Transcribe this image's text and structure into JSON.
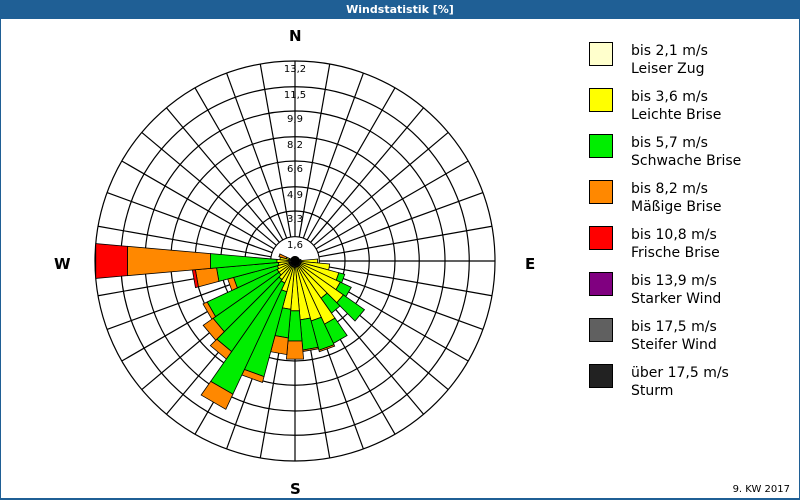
{
  "header": {
    "title": "Windstatistik [%]"
  },
  "footer": {
    "period": "9. KW 2017"
  },
  "directions": {
    "n": "N",
    "e": "E",
    "s": "S",
    "w": "W"
  },
  "legend": [
    {
      "range": "bis 2,1 m/s",
      "name": "Leiser Zug",
      "color": "#ffffcc"
    },
    {
      "range": "bis 3,6 m/s",
      "name": "Leichte Brise",
      "color": "#ffff00"
    },
    {
      "range": "bis 5,7 m/s",
      "name": "Schwache Brise",
      "color": "#00ee00"
    },
    {
      "range": "bis 8,2 m/s",
      "name": "Mäßige Brise",
      "color": "#ff8800"
    },
    {
      "range": "bis 10,8 m/s",
      "name": "Frische Brise",
      "color": "#ff0000"
    },
    {
      "range": "bis 13,9 m/s",
      "name": "Starker Wind",
      "color": "#800080"
    },
    {
      "range": "bis 17,5 m/s",
      "name": "Steifer Wind",
      "color": "#606060"
    },
    {
      "range": "über 17,5 m/s",
      "name": "Sturm",
      "color": "#222222"
    }
  ],
  "chart_data": {
    "type": "polar-bar",
    "title": "Windstatistik [%]",
    "unit": "%",
    "radial_ticks": [
      1.6,
      3.3,
      4.9,
      6.6,
      8.2,
      9.9,
      11.5,
      13.2
    ],
    "rmax": 13.2,
    "sector_width_deg": 10,
    "series_names": [
      "bis 2,1 m/s",
      "bis 3,6 m/s",
      "bis 5,7 m/s",
      "bis 8,2 m/s",
      "bis 10,8 m/s",
      "bis 13,9 m/s",
      "bis 17,5 m/s",
      "über 17,5 m/s"
    ],
    "sectors": [
      {
        "dir": 0,
        "cum": [
          0.3
        ]
      },
      {
        "dir": 10,
        "cum": [
          0.3
        ]
      },
      {
        "dir": 20,
        "cum": [
          0.3
        ]
      },
      {
        "dir": 30,
        "cum": [
          0.3
        ]
      },
      {
        "dir": 40,
        "cum": [
          0.3
        ]
      },
      {
        "dir": 50,
        "cum": [
          0.3
        ]
      },
      {
        "dir": 60,
        "cum": [
          0.3
        ]
      },
      {
        "dir": 70,
        "cum": [
          0.3
        ]
      },
      {
        "dir": 80,
        "cum": [
          0.4
        ]
      },
      {
        "dir": 90,
        "cum": [
          0.4,
          1.5
        ]
      },
      {
        "dir": 100,
        "cum": [
          0.4,
          2.3
        ]
      },
      {
        "dir": 110,
        "cum": [
          0.4,
          3.0,
          3.4
        ]
      },
      {
        "dir": 120,
        "cum": [
          0.4,
          3.3,
          4.1
        ]
      },
      {
        "dir": 130,
        "cum": [
          0.4,
          3.9,
          5.6
        ]
      },
      {
        "dir": 140,
        "cum": [
          0.4,
          3.0,
          4.2
        ]
      },
      {
        "dir": 150,
        "cum": [
          0.4,
          4.6,
          6.0
        ]
      },
      {
        "dir": 160,
        "cum": [
          0.4,
          4.1,
          6.1,
          6.2
        ]
      },
      {
        "dir": 170,
        "cum": [
          0.4,
          3.9,
          5.9,
          6.0
        ]
      },
      {
        "dir": 180,
        "cum": [
          0.4,
          3.3,
          5.3,
          6.5
        ]
      },
      {
        "dir": 190,
        "cum": [
          0.4,
          3.2,
          5.1,
          6.2
        ]
      },
      {
        "dir": 200,
        "cum": [
          0.4,
          2.1,
          7.9,
          8.3
        ]
      },
      {
        "dir": 210,
        "cum": [
          0.4,
          1.6,
          9.7,
          10.8
        ]
      },
      {
        "dir": 220,
        "cum": [
          0.4,
          1.5,
          7.3,
          7.9
        ]
      },
      {
        "dir": 230,
        "cum": [
          0.4,
          1.3,
          6.6,
          7.4
        ]
      },
      {
        "dir": 240,
        "cum": [
          0.4,
          1.3,
          6.4,
          6.7
        ]
      },
      {
        "dir": 250,
        "cum": [
          0.4,
          1.2,
          4.2,
          4.6
        ]
      },
      {
        "dir": 260,
        "cum": [
          0.4,
          1.1,
          5.2,
          6.6,
          6.8
        ]
      },
      {
        "dir": 270,
        "cum": [
          0.4,
          1.2,
          5.6,
          11.1,
          13.2
        ]
      },
      {
        "dir": 280,
        "cum": [
          0.4,
          1.0
        ]
      },
      {
        "dir": 290,
        "cum": [
          0.4,
          0.6,
          0.6,
          1.1
        ]
      },
      {
        "dir": 300,
        "cum": [
          0.3
        ]
      },
      {
        "dir": 310,
        "cum": [
          0.3
        ]
      },
      {
        "dir": 320,
        "cum": [
          0.3
        ]
      },
      {
        "dir": 330,
        "cum": [
          0.3
        ]
      },
      {
        "dir": 340,
        "cum": [
          0.3
        ]
      },
      {
        "dir": 350,
        "cum": [
          0.3
        ]
      }
    ]
  }
}
